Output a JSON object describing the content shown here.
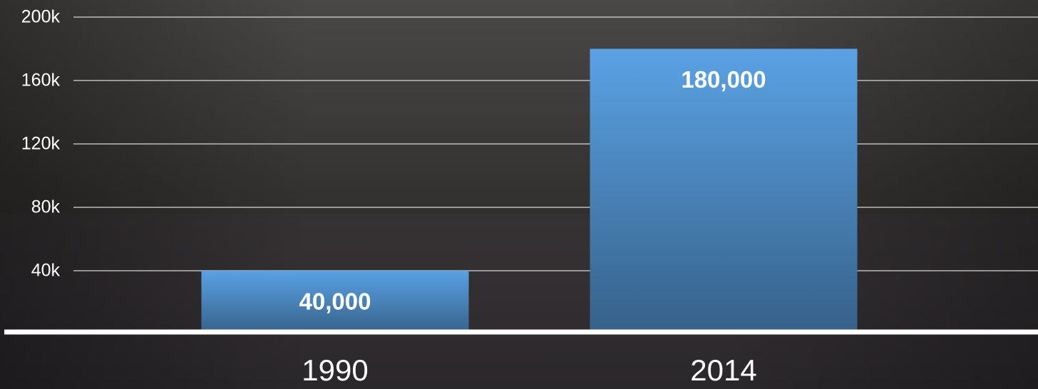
{
  "chart_data": {
    "type": "bar",
    "categories": [
      "1990",
      "2014"
    ],
    "values": [
      40000,
      180000
    ],
    "value_labels": [
      "40,000",
      "180,000"
    ],
    "color": "#5aa2e4",
    "ylim": [
      0,
      200000
    ],
    "yticks": [
      {
        "value": 40000,
        "label": "40k"
      },
      {
        "value": 80000,
        "label": "80k"
      },
      {
        "value": 120000,
        "label": "120k"
      },
      {
        "value": 160000,
        "label": "160k"
      },
      {
        "value": 200000,
        "label": "200k"
      }
    ],
    "grid": true
  }
}
